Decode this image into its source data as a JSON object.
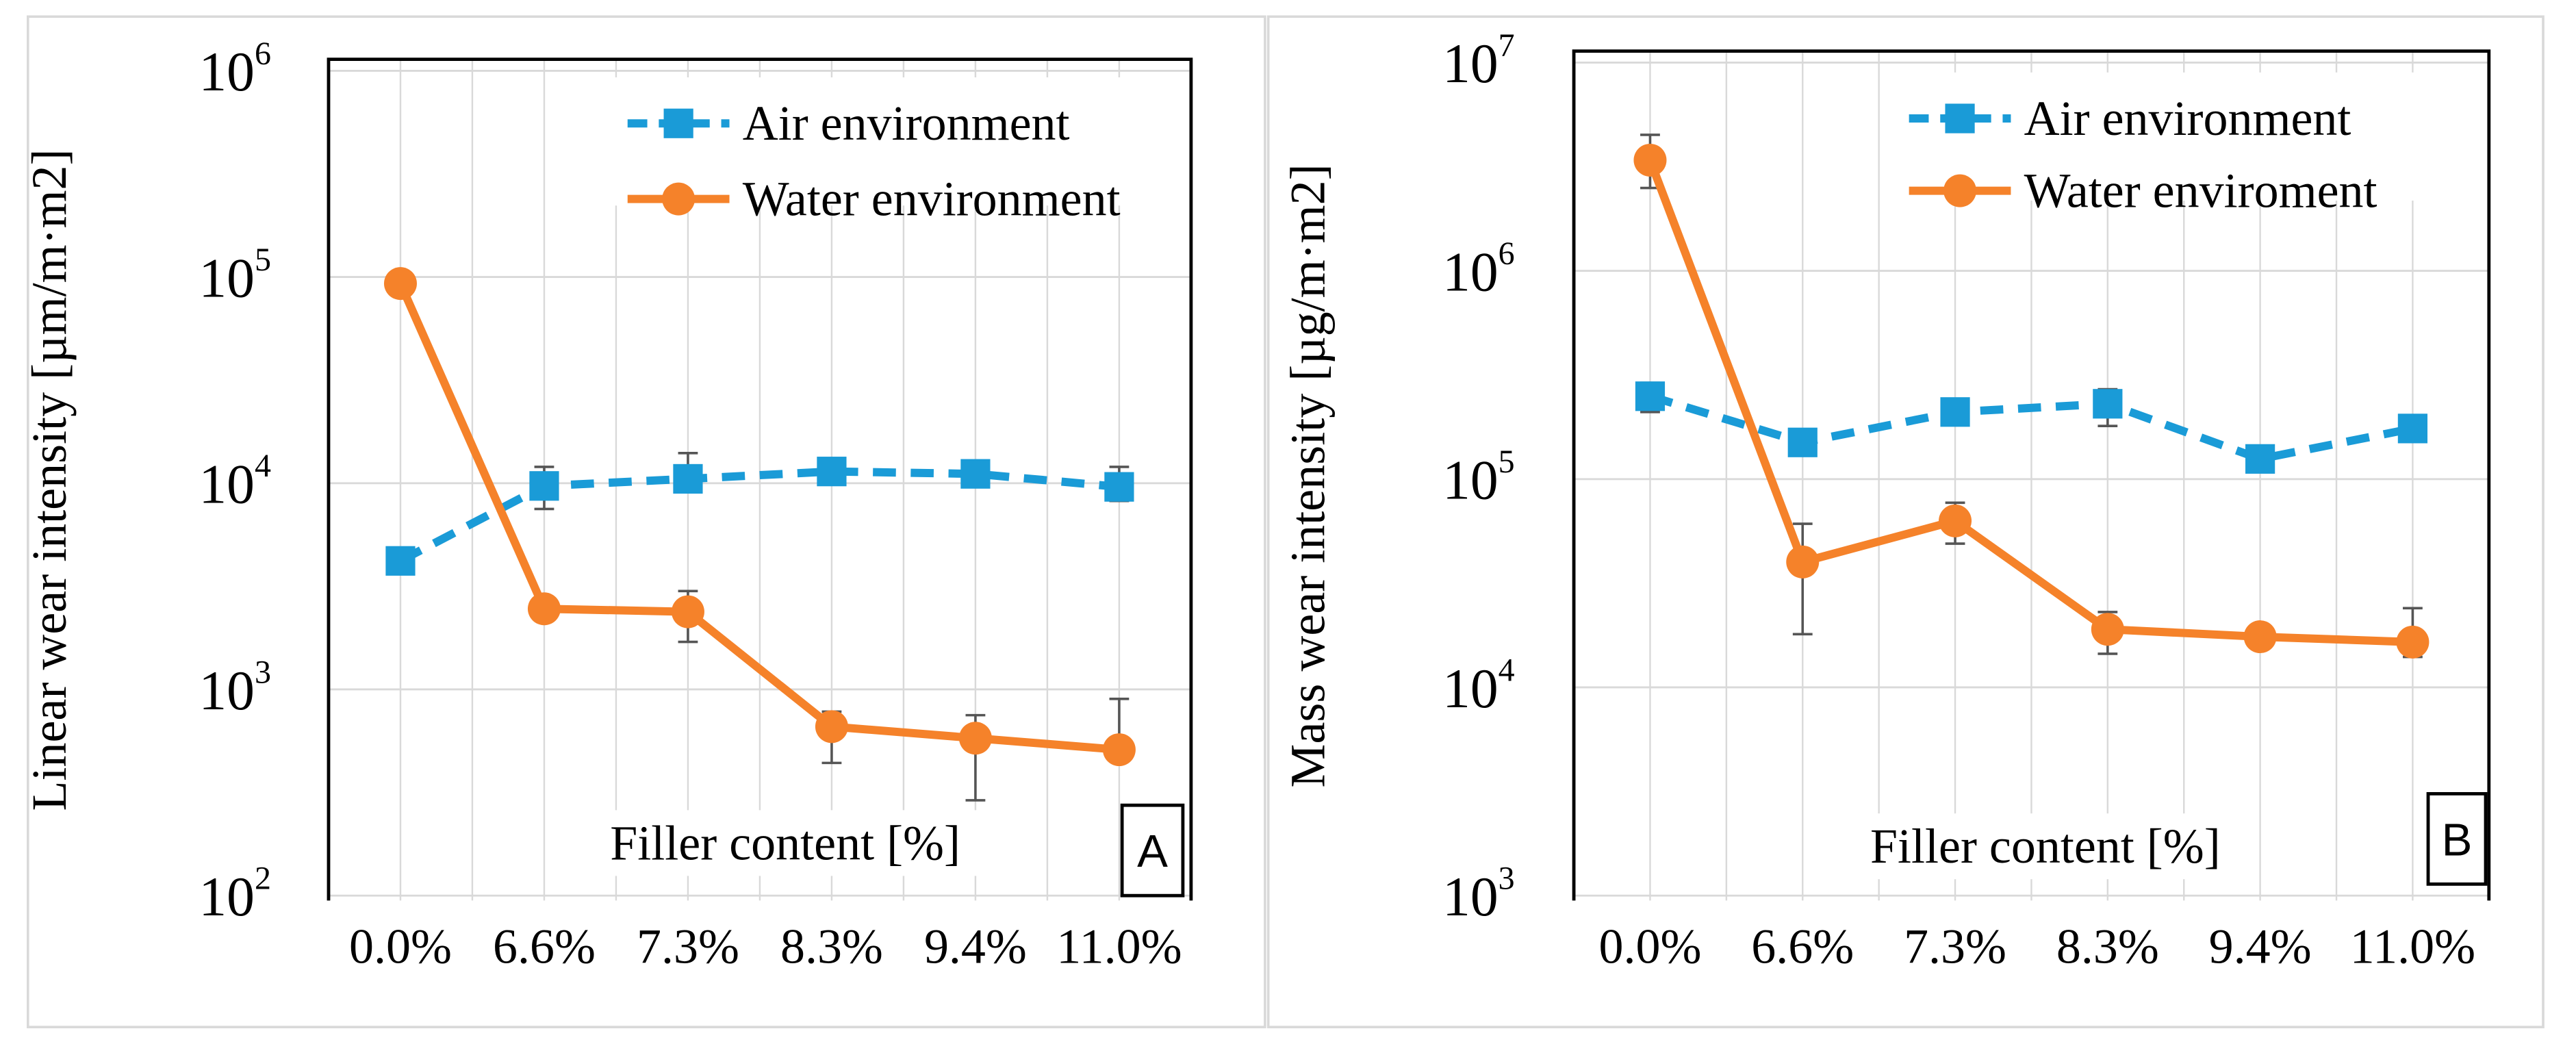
{
  "colors": {
    "air": "#1a9bd7",
    "water": "#f5822a",
    "grid": "#d9d9d9",
    "errorbar": "#555555"
  },
  "chart_data": [
    {
      "type": "line",
      "panel_label": "A",
      "xlabel": "Filler content [%]",
      "ylabel": "Linear wear intensity [µm/m·m2]",
      "yscale": "log",
      "ylim": [
        100,
        1000000
      ],
      "yticks": [
        {
          "base": "10",
          "exp": "2"
        },
        {
          "base": "10",
          "exp": "3"
        },
        {
          "base": "10",
          "exp": "4"
        },
        {
          "base": "10",
          "exp": "5"
        },
        {
          "base": "10",
          "exp": "6"
        }
      ],
      "categories": [
        "0.0%",
        "6.6%",
        "7.3%",
        "8.3%",
        "9.4%",
        "11.0%"
      ],
      "legend_position": "top-right",
      "series": [
        {
          "name": "Air environment",
          "style": "dashed",
          "marker": "square",
          "values": [
            4200,
            9700,
            10500,
            11400,
            11100,
            9600
          ],
          "err_high": [
            null,
            12000,
            14000,
            null,
            12500,
            12000
          ],
          "err_low": [
            null,
            7500,
            null,
            null,
            9800,
            8200
          ]
        },
        {
          "name": "Water environment",
          "style": "solid",
          "marker": "circle",
          "values": [
            93000,
            2460,
            2380,
            660,
            580,
            510
          ],
          "err_high": [
            null,
            null,
            3000,
            780,
            750,
            900
          ],
          "err_low": [
            null,
            null,
            1700,
            440,
            290,
            null
          ]
        }
      ]
    },
    {
      "type": "line",
      "panel_label": "B",
      "xlabel": "Filler content [%]",
      "ylabel": "Mass wear intensity [µg/m·m2]",
      "yscale": "log",
      "ylim": [
        1000,
        10000000
      ],
      "yticks": [
        {
          "base": "10",
          "exp": "3"
        },
        {
          "base": "10",
          "exp": "4"
        },
        {
          "base": "10",
          "exp": "5"
        },
        {
          "base": "10",
          "exp": "6"
        },
        {
          "base": "10",
          "exp": "7"
        }
      ],
      "categories": [
        "0.0%",
        "6.6%",
        "7.3%",
        "8.3%",
        "9.4%",
        "11.0%"
      ],
      "legend_position": "top-right",
      "series": [
        {
          "name": "Air environment",
          "style": "dashed",
          "marker": "square",
          "values": [
            250000,
            150000,
            210000,
            230000,
            125000,
            175000
          ],
          "err_high": [
            290000,
            null,
            null,
            270000,
            null,
            null
          ],
          "err_low": [
            210000,
            null,
            null,
            180000,
            null,
            null
          ]
        },
        {
          "name": "Water enviroment",
          "style": "solid",
          "marker": "circle",
          "values": [
            3400000,
            40000,
            63000,
            19000,
            17500,
            16500
          ],
          "err_high": [
            4500000,
            61000,
            77000,
            23000,
            null,
            24000
          ],
          "err_low": [
            2500000,
            18000,
            49000,
            14500,
            null,
            14000
          ]
        }
      ]
    }
  ]
}
